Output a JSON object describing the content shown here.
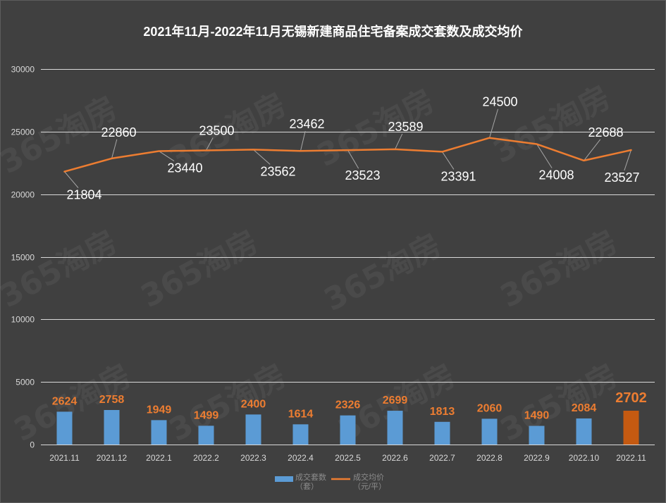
{
  "chart_data": {
    "type": "bar",
    "title": "2021年11月-2022年11月无锡新建商品住宅备案成交套数及成交均价",
    "categories": [
      "2021.11",
      "2021.12",
      "2022.1",
      "2022.2",
      "2022.3",
      "2022.4",
      "2022.5",
      "2022.6",
      "2022.7",
      "2022.8",
      "2022.9",
      "2022.10",
      "2022.11"
    ],
    "series": [
      {
        "name": "成交套数（套）",
        "type": "bar",
        "values": [
          2624,
          2758,
          1949,
          1499,
          2400,
          1614,
          2326,
          2699,
          1813,
          2060,
          1490,
          2084,
          2702
        ],
        "data_labels": true
      },
      {
        "name": "成交均价（元/平）",
        "type": "line",
        "values": [
          21804,
          22860,
          23440,
          23500,
          23562,
          23462,
          23523,
          23589,
          23391,
          24500,
          24008,
          22688,
          23527
        ],
        "data_labels": true
      }
    ],
    "ylim": [
      0,
      30000
    ],
    "y_ticks": [
      0,
      5000,
      10000,
      15000,
      20000,
      25000,
      30000
    ],
    "grid": true,
    "legend": "bottom",
    "highlight_category": "2022.11"
  },
  "colors": {
    "background": "#404040",
    "grid": "#d9d9d9",
    "bar": "#5b9bd5",
    "bar_highlight": "#c55a11",
    "bar_label": "#ed7d31",
    "line": "#ed7d31",
    "line_label": "#ffffff"
  },
  "watermark": "365淘房"
}
